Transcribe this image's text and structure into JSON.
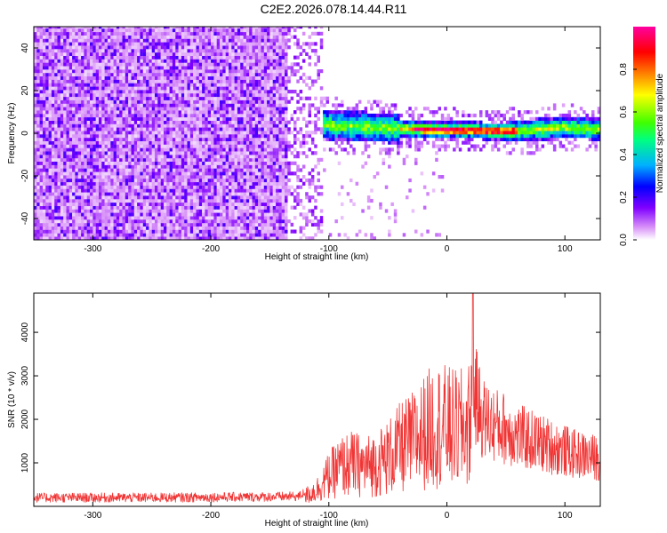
{
  "title": "C2E2.2026.078.14.44.R11",
  "chart_data": [
    {
      "type": "heatmap",
      "xlabel": "Height of straight line (km)",
      "ylabel": "Frequency (Hz)",
      "xlim": [
        -350,
        130
      ],
      "ylim": [
        -50,
        50
      ],
      "xticks": [
        -300,
        -200,
        -100,
        0,
        100
      ],
      "yticks": [
        -40,
        -20,
        0,
        20,
        40
      ],
      "colorbar": {
        "label": "Normalized spectral amplitude",
        "range": [
          0,
          1
        ],
        "ticks": [
          "0.0",
          "0.2",
          "0.4",
          "0.6",
          "0.8"
        ],
        "colormap": [
          "#ffffff",
          "#d890f8",
          "#8000ff",
          "#0000ff",
          "#00b0ff",
          "#00ff80",
          "#80ff00",
          "#ffff00",
          "#ff8000",
          "#ff0000",
          "#ff00a0"
        ]
      },
      "regions": [
        {
          "x": [
            -350,
            -125
          ],
          "description": "broadband noise, normalized amplitude ~0.0-0.2 across all frequencies"
        },
        {
          "x": [
            -125,
            130
          ],
          "freq_center_hz": [
            [
              -120,
              6
            ],
            [
              -100,
              3
            ],
            [
              -60,
              2
            ],
            [
              -20,
              1
            ],
            [
              0,
              1
            ],
            [
              50,
              0
            ],
            [
              100,
              2
            ],
            [
              130,
              1
            ]
          ],
          "peak_amplitude": 0.9
        }
      ]
    },
    {
      "type": "line",
      "xlabel": "Height of straight line (km)",
      "ylabel": "SNR (10 * v/v)",
      "xlim": [
        -350,
        130
      ],
      "ylim": [
        0,
        4900
      ],
      "xticks": [
        -300,
        -200,
        -100,
        0,
        100
      ],
      "yticks": [
        1000,
        2000,
        3000,
        4000
      ],
      "series": [
        {
          "name": "SNR",
          "color": "#f03535",
          "x": [
            -350,
            -300,
            -250,
            -200,
            -150,
            -125,
            -110,
            -100,
            -90,
            -80,
            -70,
            -60,
            -50,
            -40,
            -30,
            -20,
            -10,
            0,
            10,
            20,
            22,
            30,
            40,
            50,
            60,
            70,
            80,
            90,
            100,
            110,
            120,
            130
          ],
          "y": [
            200,
            200,
            200,
            210,
            220,
            230,
            550,
            1000,
            1300,
            1400,
            1300,
            1400,
            1600,
            1900,
            2100,
            2400,
            2700,
            2600,
            2500,
            2700,
            3200,
            2400,
            2200,
            2100,
            1900,
            1800,
            1700,
            1600,
            1500,
            1400,
            1350,
            1300
          ]
        }
      ]
    }
  ]
}
